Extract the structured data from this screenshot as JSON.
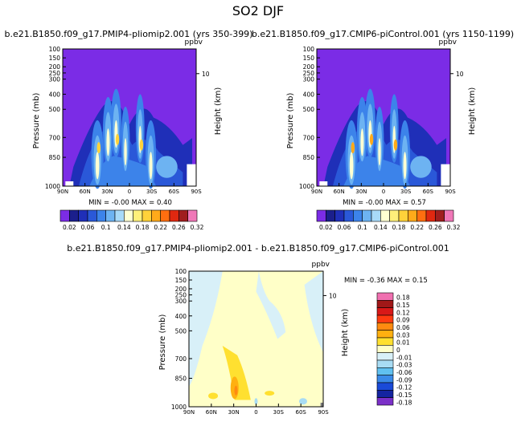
{
  "title": "SO2 DJF",
  "chart_data": [
    {
      "type": "heatmap",
      "title": "b.e21.B1850.f09_g17.PMIP4-pliomip2.001 (yrs 350-399)",
      "units": "ppbv",
      "ylabel": "Pressure (mb)",
      "ylabel_right": "Height (km)",
      "right_tick": "10",
      "yticks": [
        "100",
        "150",
        "200",
        "250",
        "300",
        "400",
        "500",
        "700",
        "850",
        "1000"
      ],
      "xticks": [
        "90N",
        "60N",
        "30N",
        "0",
        "30S",
        "60S",
        "90S"
      ],
      "min_label": "MIN =",
      "min_value": "-0.00",
      "max_label": "MAX =",
      "max_value": "0.40",
      "colorbar_labels": [
        "0.02",
        "0.06",
        "0.1",
        "0.14",
        "0.18",
        "0.22",
        "0.26",
        "0.32"
      ]
    },
    {
      "type": "heatmap",
      "title": "b.e21.B1850.f09_g17.CMIP6-piControl.001 (yrs 1150-1199)",
      "units": "ppbv",
      "ylabel": "Pressure (mb)",
      "ylabel_right": "Height (km)",
      "right_tick": "10",
      "yticks": [
        "100",
        "150",
        "200",
        "250",
        "300",
        "400",
        "500",
        "700",
        "850",
        "1000"
      ],
      "xticks": [
        "90N",
        "60N",
        "30N",
        "0",
        "30S",
        "60S",
        "90S"
      ],
      "min_label": "MIN =",
      "min_value": "-0.00",
      "max_label": "MAX =",
      "max_value": "0.57",
      "colorbar_labels": [
        "0.02",
        "0.06",
        "0.1",
        "0.14",
        "0.18",
        "0.22",
        "0.26",
        "0.32"
      ]
    },
    {
      "type": "heatmap",
      "title": "b.e21.B1850.f09_g17.PMIP4-pliomip2.001 - b.e21.B1850.f09_g17.CMIP6-piControl.001",
      "units": "ppbv",
      "ylabel": "Pressure (mb)",
      "ylabel_right": "Height (km)",
      "right_tick": "10",
      "yticks": [
        "100",
        "150",
        "200",
        "250",
        "300",
        "400",
        "500",
        "700",
        "850",
        "1000"
      ],
      "xticks": [
        "90N",
        "60N",
        "30N",
        "0",
        "30S",
        "60S",
        "90S"
      ],
      "min_label": "MIN =",
      "min_value": "-0.36",
      "max_label": "MAX =",
      "max_value": "0.15",
      "colorbar_labels": [
        "0.18",
        "0.15",
        "0.12",
        "0.09",
        "0.06",
        "0.03",
        "0.01",
        "0",
        "-0.01",
        "-0.03",
        "-0.06",
        "-0.09",
        "-0.12",
        "-0.15",
        "-0.18"
      ]
    }
  ],
  "colors": {
    "seq": [
      "#7b2ce6",
      "#1b1f8c",
      "#1f2fb8",
      "#2a58d8",
      "#3c83ea",
      "#6db3f2",
      "#a8daf8",
      "#ffffd2",
      "#fff07a",
      "#ffd23a",
      "#ffaa1a",
      "#ff6e10",
      "#e02810",
      "#a01e1e",
      "#f078b8"
    ],
    "div": [
      "#f070b0",
      "#a01818",
      "#d81818",
      "#ff3a10",
      "#ff8a10",
      "#ffb010",
      "#ffe030",
      "#ffffc8",
      "#d8f0f8",
      "#a8dcf4",
      "#60c0f0",
      "#3a8ae8",
      "#1a4ad8",
      "#1424a0",
      "#7b30c8"
    ]
  }
}
